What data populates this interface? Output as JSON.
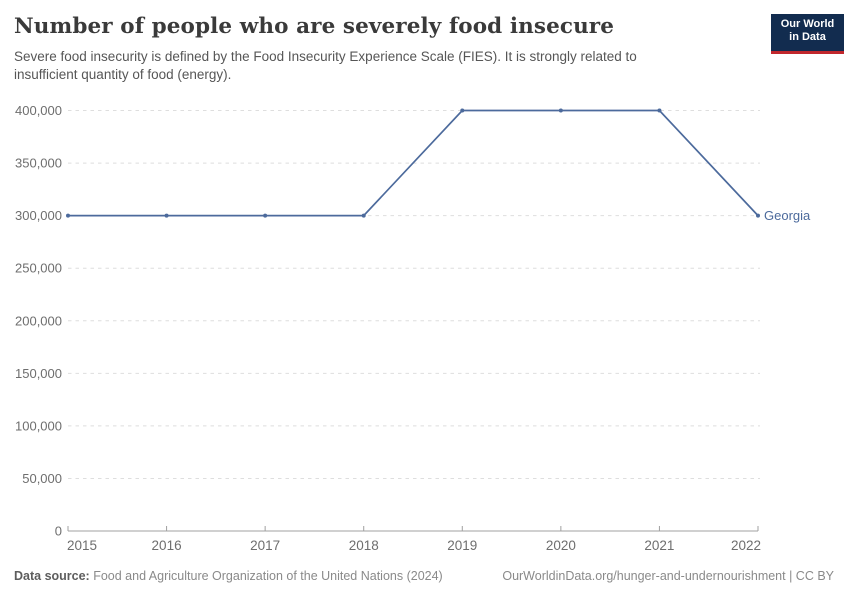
{
  "header": {
    "title": "Number of people who are severely food insecure",
    "subtitle_line1": "Severe food insecurity is defined by the Food Insecurity Experience Scale (FIES). It is strongly related to",
    "subtitle_line2": "insufficient quantity of food (energy).",
    "logo": {
      "line1": "Our World",
      "line2": "in Data"
    }
  },
  "chart_data": {
    "type": "line",
    "title": "Number of people who are severely food insecure",
    "x": [
      "2015",
      "2016",
      "2017",
      "2018",
      "2019",
      "2020",
      "2021",
      "2022"
    ],
    "series": [
      {
        "name": "Georgia",
        "values": [
          300000,
          300000,
          300000,
          300000,
          400000,
          400000,
          400000,
          300000
        ],
        "color": "#4c6a9c"
      }
    ],
    "xlabel": "",
    "ylabel": "",
    "ylim": [
      0,
      400000
    ],
    "yticks": [
      {
        "value": 0,
        "label": "0"
      },
      {
        "value": 50000,
        "label": "50,000"
      },
      {
        "value": 100000,
        "label": "100,000"
      },
      {
        "value": 150000,
        "label": "150,000"
      },
      {
        "value": 200000,
        "label": "200,000"
      },
      {
        "value": 250000,
        "label": "250,000"
      },
      {
        "value": 300000,
        "label": "300,000"
      },
      {
        "value": 350000,
        "label": "350,000"
      },
      {
        "value": 400000,
        "label": "400,000"
      }
    ],
    "grid": "horizontal-dashed",
    "legend_position": "end-of-line-label",
    "markers": true
  },
  "footer": {
    "datasource_label": "Data source:",
    "datasource_text": " Food and Agriculture Organization of the United Nations (2024)",
    "link_text": "OurWorldinData.org/hunger-and-undernourishment | CC BY"
  },
  "colors": {
    "line": "#4c6a9c",
    "title_text": "#3a3a3a",
    "subtitle_text": "#565656",
    "axis_text": "#6e6e6e",
    "gridline": "#dedede",
    "axis_line": "#a0a0a0",
    "footer_text": "#8a8a8a",
    "logo_bg": "#122c4f",
    "logo_stripe": "#c1272d"
  }
}
